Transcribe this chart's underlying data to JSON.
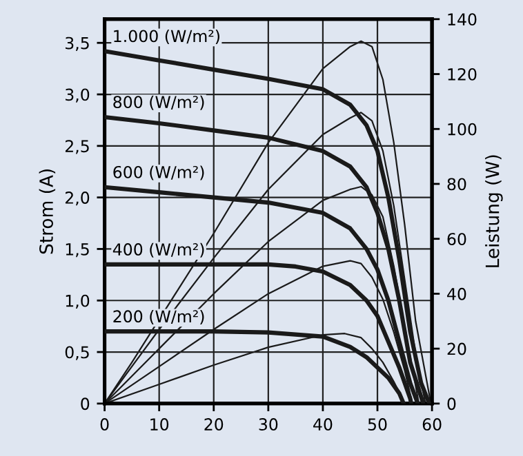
{
  "chart_data": {
    "type": "line",
    "xlabel": null,
    "ylabel": "Strom (A)",
    "y2label": "Leistung (W)",
    "xlim": [
      0,
      60
    ],
    "xticks": [
      0,
      10,
      20,
      30,
      40,
      50,
      60
    ],
    "ylim": [
      0,
      3.73
    ],
    "yticks": [
      0,
      {
        "value": 0.5,
        "label": "0,5"
      },
      {
        "value": 1.0,
        "label": "1,0"
      },
      {
        "value": 1.5,
        "label": "1,5"
      },
      {
        "value": 2.0,
        "label": "2,0"
      },
      {
        "value": 2.5,
        "label": "2,5"
      },
      {
        "value": 3.0,
        "label": "3,0"
      },
      {
        "value": 3.5,
        "label": "3,5"
      }
    ],
    "y2lim": [
      0,
      140
    ],
    "y2ticks": [
      0,
      20,
      40,
      60,
      80,
      100,
      120,
      140
    ],
    "grid": true,
    "marker": "none",
    "line_style": "solid",
    "series": [
      {
        "color": "#1a1a1a",
        "x": [
          0,
          10,
          20,
          30,
          40,
          45,
          48,
          50,
          52,
          54,
          56,
          58,
          59.5
        ],
        "values": [
          3.42,
          3.33,
          3.24,
          3.15,
          3.05,
          2.9,
          2.7,
          2.45,
          2.0,
          1.4,
          0.7,
          0.2,
          0
        ]
      },
      {
        "color": "#1a1a1a",
        "x": [
          0,
          10,
          20,
          30,
          40,
          45,
          48,
          50,
          52,
          54,
          56,
          58.4
        ],
        "values": [
          2.78,
          2.72,
          2.65,
          2.58,
          2.45,
          2.3,
          2.1,
          1.85,
          1.5,
          1.0,
          0.4,
          0
        ]
      },
      {
        "color": "#1a1a1a",
        "x": [
          0,
          10,
          20,
          30,
          40,
          45,
          48,
          50,
          52,
          54,
          56,
          57.4
        ],
        "values": [
          2.1,
          2.05,
          2.0,
          1.95,
          1.85,
          1.7,
          1.5,
          1.3,
          1.0,
          0.6,
          0.2,
          0
        ]
      },
      {
        "color": "#1a1a1a",
        "x": [
          0,
          10,
          20,
          30,
          35,
          40,
          45,
          48,
          50,
          52,
          54,
          56,
          56.2
        ],
        "values": [
          1.35,
          1.35,
          1.35,
          1.35,
          1.33,
          1.28,
          1.15,
          1.0,
          0.85,
          0.6,
          0.35,
          0.05,
          0
        ]
      },
      {
        "color": "#1a1a1a",
        "x": [
          0,
          20,
          30,
          40,
          45,
          48,
          50,
          52,
          54,
          54.8
        ],
        "values": [
          0.7,
          0.7,
          0.69,
          0.65,
          0.55,
          0.45,
          0.35,
          0.25,
          0.1,
          0
        ]
      },
      {
        "color": "#1a1a1a",
        "axis": "y2",
        "x": [
          0,
          5,
          20,
          30,
          40,
          45,
          47,
          49,
          51,
          53,
          55,
          57,
          59.8
        ],
        "values": [
          0,
          15,
          62,
          95,
          122,
          130,
          132,
          130,
          118,
          95,
          65,
          30,
          0
        ]
      },
      {
        "color": "#1a1a1a",
        "axis": "y2",
        "x": [
          0,
          10,
          20,
          30,
          40,
          45,
          47,
          49,
          51,
          53,
          55,
          57,
          58.8
        ],
        "values": [
          0,
          27,
          53,
          78,
          98,
          104,
          106,
          103,
          92,
          72,
          45,
          18,
          0
        ]
      },
      {
        "color": "#1a1a1a",
        "axis": "y2",
        "x": [
          0,
          10,
          20,
          30,
          40,
          45,
          47,
          49,
          51,
          53,
          55,
          57.6
        ],
        "values": [
          0,
          20,
          40,
          59,
          74,
          78,
          79,
          76,
          68,
          50,
          28,
          0
        ]
      },
      {
        "color": "#1a1a1a",
        "axis": "y2",
        "x": [
          0,
          10,
          20,
          30,
          40,
          45,
          47,
          49,
          51,
          53,
          55,
          56.4
        ],
        "values": [
          0,
          13.5,
          27,
          40,
          50,
          52,
          51,
          46,
          38,
          26,
          12,
          0
        ]
      },
      {
        "color": "#1a1a1a",
        "axis": "y2",
        "x": [
          0,
          10,
          20,
          30,
          40,
          44,
          47,
          49,
          51,
          53,
          55
        ],
        "values": [
          0,
          7,
          14,
          20.5,
          25,
          25.5,
          24,
          20,
          15,
          8,
          0
        ]
      }
    ],
    "annotations": [
      "1.000 (W/m²)",
      "800 (W/m²)",
      "600 (W/m²)",
      "400 (W/m²)",
      "200 (W/m²)"
    ]
  }
}
